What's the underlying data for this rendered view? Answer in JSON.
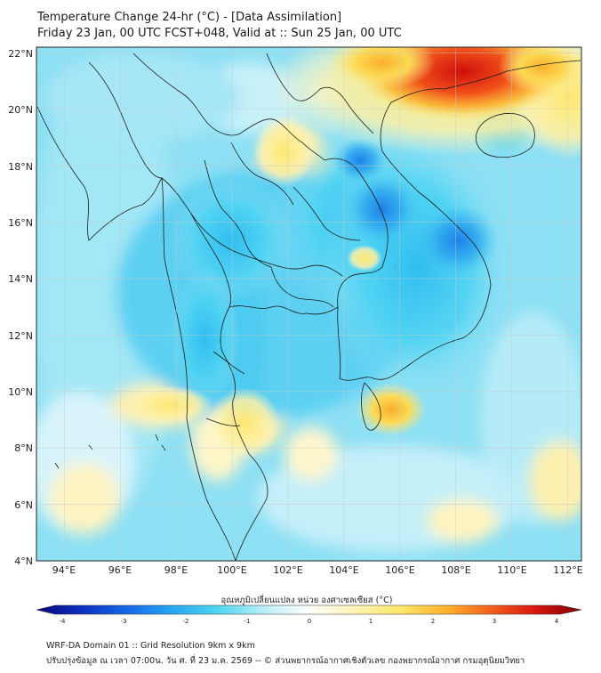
{
  "title": {
    "line1": "Temperature Change 24-hr (°C) - [Data Assimilation]",
    "line2": "Friday 23 Jan, 00 UTC FCST+048, Valid at :: Sun 25 Jan, 00 UTC"
  },
  "map": {
    "lat_labels": [
      "4°N",
      "6°N",
      "8°N",
      "10°N",
      "12°N",
      "14°N",
      "16°N",
      "18°N",
      "20°N",
      "22°N"
    ],
    "lat_values": [
      4,
      6,
      8,
      10,
      12,
      14,
      16,
      18,
      20,
      22
    ],
    "lon_labels": [
      "94°E",
      "96°E",
      "98°E",
      "100°E",
      "102°E",
      "104°E",
      "106°E",
      "108°E",
      "110°E",
      "112°E"
    ],
    "lon_values": [
      94,
      96,
      98,
      100,
      102,
      104,
      106,
      108,
      110,
      112
    ],
    "lon_range": [
      93.0,
      112.5
    ],
    "lat_range": [
      4.0,
      22.2
    ]
  },
  "colorbar": {
    "label": "อุณหภูมิเปลี่ยนแปลง หน่วย องศาเซลเซียส (°C)",
    "tick_labels": [
      "-4",
      "-3",
      "-2",
      "-1",
      "0",
      "1",
      "2",
      "3",
      "4"
    ],
    "tick_values": [
      -4,
      -3,
      -2,
      -1,
      0,
      1,
      2,
      3,
      4
    ],
    "range": [
      -4,
      4
    ],
    "colors": [
      "#08087a",
      "#0d2fbf",
      "#1768e8",
      "#27a7f2",
      "#4fd6f2",
      "#b9eef7",
      "#ffffff",
      "#fdf3b5",
      "#fde76a",
      "#fbb42a",
      "#f3601c",
      "#d8140e",
      "#7a0000"
    ]
  },
  "footer": {
    "line1": "WRF-DA Domain 01 :: Grid Resolution 9km x 9km",
    "line2": "ปรับปรุงข้อมูล ณ เวลา 07:00น. วัน ศ. ที่ 23 ม.ค. 2569 -- © ส่วนพยากรณ์อากาศเชิงตัวเลข กองพยากรณ์อากาศ กรมอุตุนิยมวิทยา"
  }
}
